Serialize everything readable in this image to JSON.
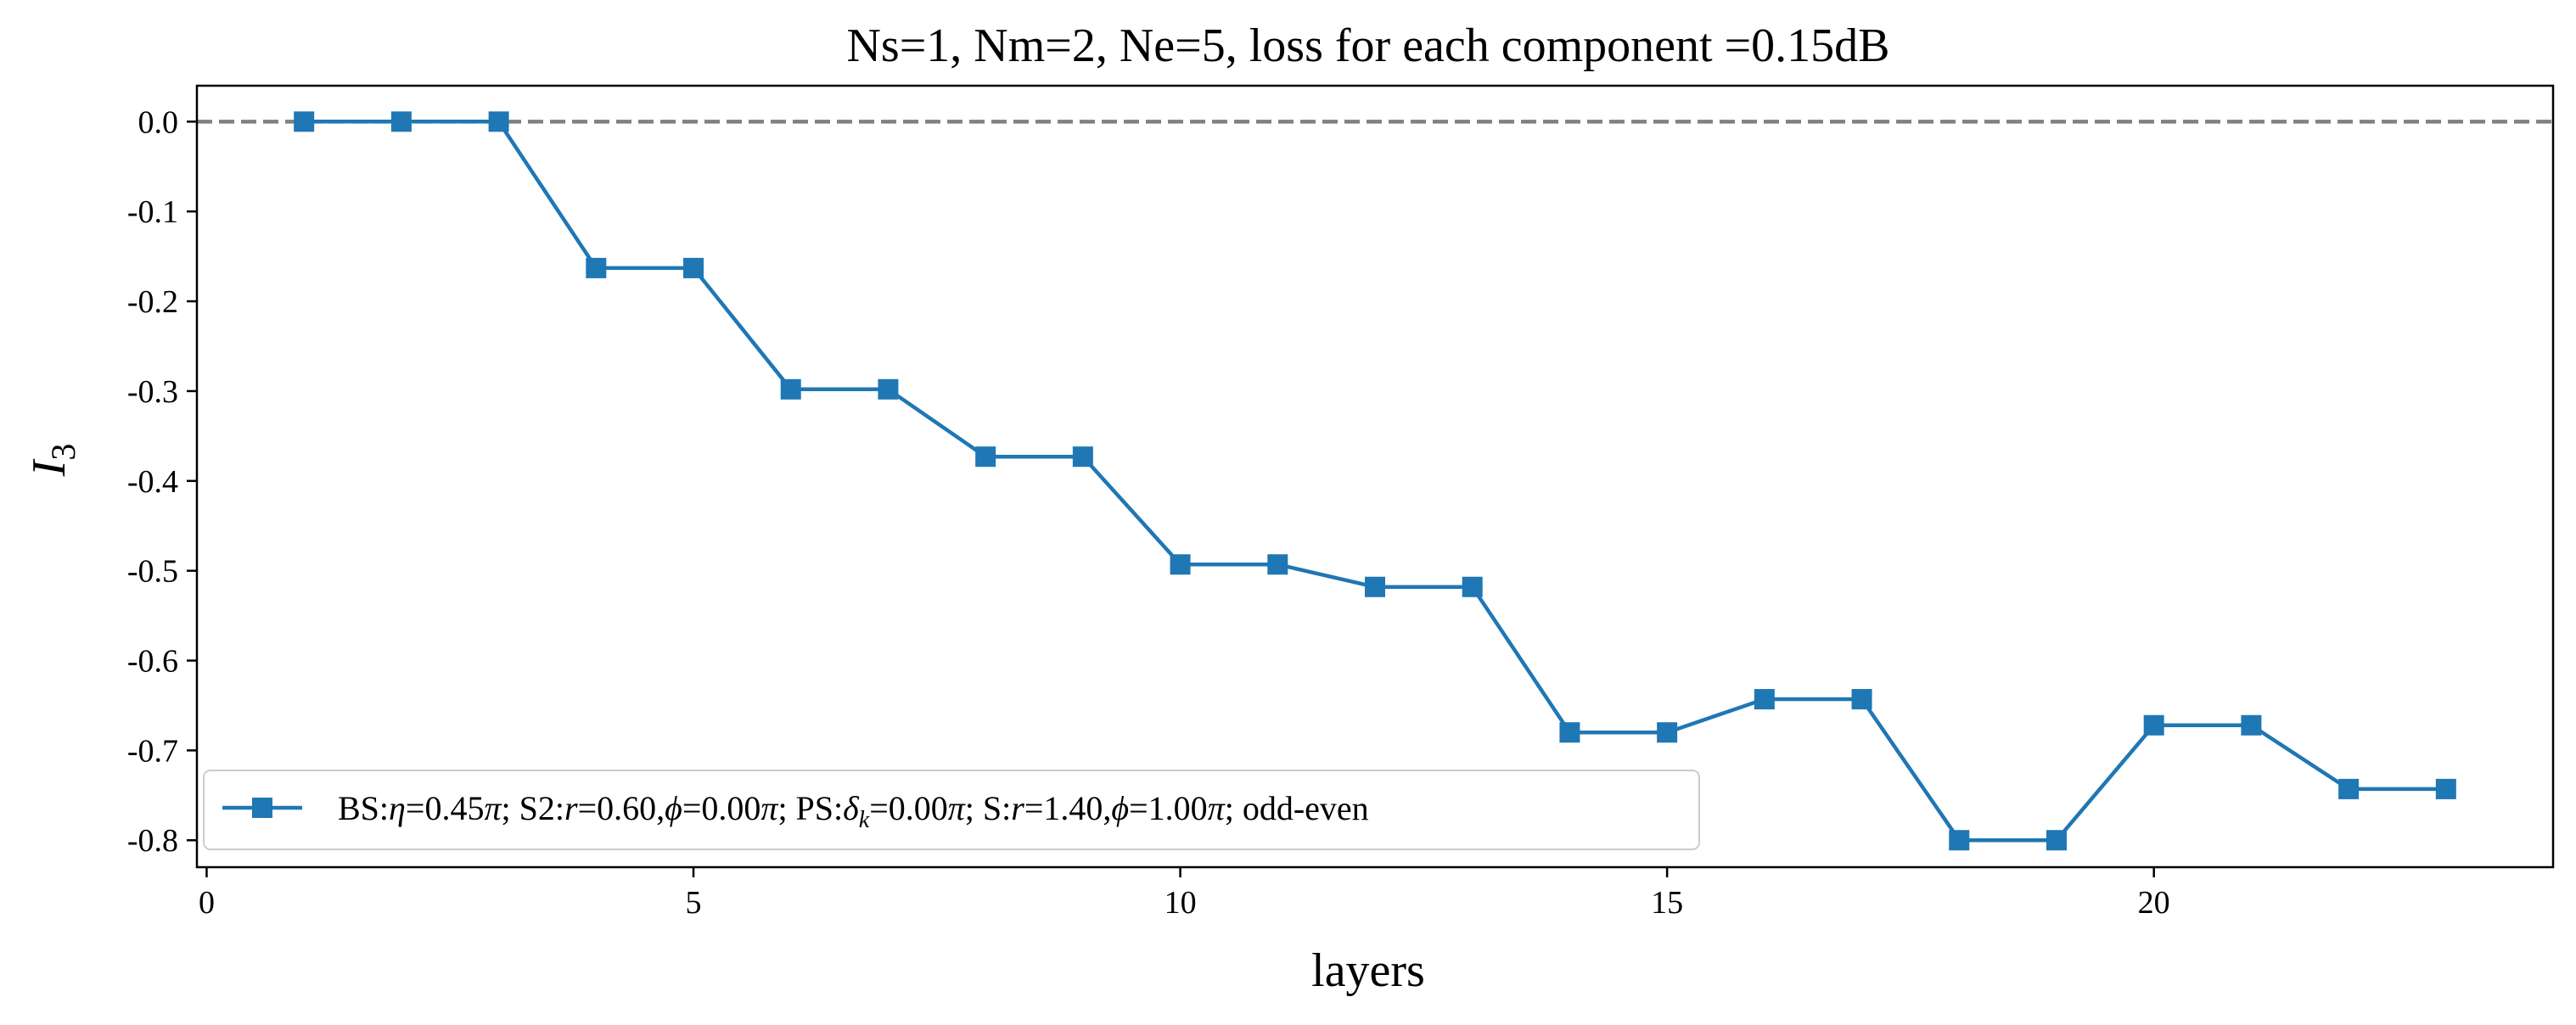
{
  "chart_data": {
    "type": "line",
    "title": "Ns=1, Nm=2, Ne=5, loss for each component =0.15dB",
    "xlabel": "layers",
    "ylabel": "I",
    "ylabel_sub": "3",
    "xlim": [
      -0.1,
      24.1
    ],
    "ylim": [
      -0.83,
      0.04
    ],
    "xticks": [
      0,
      5,
      10,
      15,
      20
    ],
    "yticks": [
      0.0,
      -0.1,
      -0.2,
      -0.3,
      -0.4,
      -0.5,
      -0.6,
      -0.7,
      -0.8
    ],
    "ytick_labels": [
      "0.0",
      "-0.1",
      "-0.2",
      "-0.3",
      "-0.4",
      "-0.5",
      "-0.6",
      "-0.7",
      "-0.8"
    ],
    "grid": false,
    "reference_line": {
      "y": 0.0,
      "style": "dashed",
      "color": "#808080"
    },
    "legend_position": "lower-left",
    "series": [
      {
        "name": "BS:η=0.45π;  S2:r=0.60,ϕ=0.00π;  PS:δk=0.00π;  S:r=1.40,ϕ=1.00π;  odd-even",
        "color": "#1f77b4",
        "marker": "square",
        "x": [
          1,
          2,
          3,
          4,
          5,
          6,
          7,
          8,
          9,
          10,
          11,
          12,
          13,
          14,
          15,
          16,
          17,
          18,
          19,
          20,
          21,
          22,
          23
        ],
        "y": [
          0.0,
          0.0,
          0.0,
          -0.163,
          -0.163,
          -0.298,
          -0.298,
          -0.373,
          -0.373,
          -0.493,
          -0.493,
          -0.518,
          -0.518,
          -0.68,
          -0.68,
          -0.643,
          -0.643,
          -0.8,
          -0.8,
          -0.672,
          -0.672,
          -0.743,
          -0.743
        ]
      }
    ]
  },
  "legend": {
    "parts": [
      {
        "t": "BS:",
        "i": false
      },
      {
        "t": "η",
        "i": true
      },
      {
        "t": "=0.45",
        "i": false
      },
      {
        "t": "π",
        "i": true
      },
      {
        "t": ";  S2:",
        "i": false
      },
      {
        "t": "r",
        "i": true
      },
      {
        "t": "=0.60,",
        "i": false
      },
      {
        "t": "ϕ",
        "i": true
      },
      {
        "t": "=0.00",
        "i": false
      },
      {
        "t": "π",
        "i": true
      },
      {
        "t": ";  PS:",
        "i": false
      },
      {
        "t": "δ",
        "i": true
      },
      {
        "t": "k",
        "i": true,
        "sub": true
      },
      {
        "t": "=0.00",
        "i": false
      },
      {
        "t": "π",
        "i": true
      },
      {
        "t": ";  S:",
        "i": false
      },
      {
        "t": "r",
        "i": true
      },
      {
        "t": "=1.40,",
        "i": false
      },
      {
        "t": "ϕ",
        "i": true
      },
      {
        "t": "=1.00",
        "i": false
      },
      {
        "t": "π",
        "i": true
      },
      {
        "t": ";  odd-even",
        "i": false
      }
    ]
  }
}
